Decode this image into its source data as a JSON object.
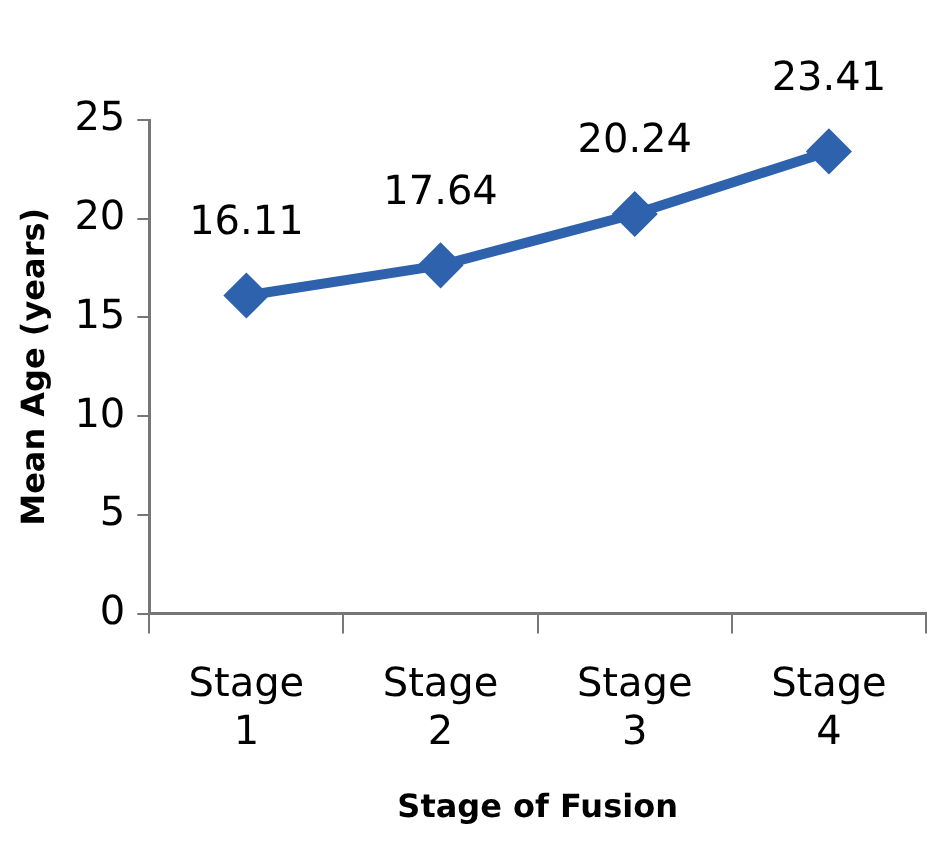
{
  "chart_data": {
    "type": "line",
    "xlabel": "Stage of Fusion",
    "ylabel": "Mean Age (years)",
    "categories": [
      "Stage 1",
      "Stage 2",
      "Stage 3",
      "Stage 4"
    ],
    "series": [
      {
        "color": "#2e62ad",
        "values": [
          16.11,
          17.64,
          20.24,
          23.41
        ]
      }
    ],
    "ylim": [
      0,
      25
    ],
    "yticks": [
      0,
      5,
      10,
      15,
      20,
      25
    ],
    "grid": false,
    "legend": false,
    "marker": "diamond",
    "line_style": "solid",
    "data_labels": true
  }
}
